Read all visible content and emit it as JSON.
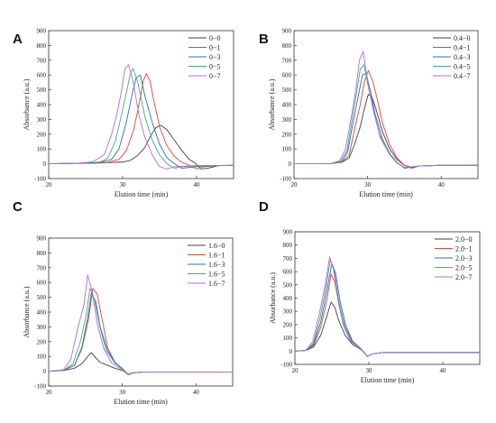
{
  "chart_data": [
    {
      "panel": "A",
      "type": "line",
      "xlabel": "Elution time (min)",
      "ylabel": "Absorbance (a.u.)",
      "xlim": [
        20,
        45
      ],
      "ylim": [
        -100,
        900
      ],
      "xticks": [
        "20",
        "30",
        "40"
      ],
      "yticks": [
        "-100",
        "0",
        "100",
        "200",
        "300",
        "400",
        "500",
        "600",
        "700",
        "800",
        "900"
      ],
      "legend_position": "top-right",
      "series": [
        {
          "name": "0−0",
          "color": "#404040",
          "x": [
            20,
            26,
            28,
            30,
            31,
            32,
            33,
            33.8,
            34.5,
            35.2,
            36,
            37,
            38,
            39,
            39.8,
            40.6,
            41.5,
            43,
            45
          ],
          "y": [
            0,
            3,
            8,
            12,
            22,
            55,
            110,
            190,
            245,
            260,
            230,
            160,
            90,
            30,
            5,
            -35,
            -30,
            -12,
            -10
          ]
        },
        {
          "name": "0−1",
          "color": "#e0453a",
          "x": [
            20,
            26,
            28,
            29.5,
            30.5,
            31.5,
            32.2,
            32.8,
            33.2,
            33.7,
            34.2,
            35,
            36,
            37,
            38,
            39,
            40,
            41,
            43,
            45
          ],
          "y": [
            0,
            5,
            10,
            30,
            90,
            230,
            400,
            560,
            610,
            560,
            430,
            250,
            120,
            50,
            10,
            -10,
            -35,
            -20,
            -12,
            -10
          ]
        },
        {
          "name": "0−3",
          "color": "#2e6db4",
          "x": [
            20,
            25,
            27,
            28.5,
            29.5,
            30.5,
            31.2,
            31.8,
            32.4,
            33,
            34,
            35,
            36,
            37,
            38,
            39,
            41,
            45
          ],
          "y": [
            0,
            5,
            10,
            30,
            100,
            280,
            450,
            580,
            600,
            460,
            280,
            130,
            40,
            0,
            -30,
            -25,
            -15,
            -10
          ]
        },
        {
          "name": "0−5",
          "color": "#3fae7a",
          "x": [
            20,
            25,
            27,
            28,
            29,
            29.8,
            30.5,
            31,
            31.4,
            32,
            33,
            34,
            35,
            36,
            37,
            38,
            41,
            45
          ],
          "y": [
            0,
            5,
            12,
            40,
            150,
            320,
            480,
            600,
            645,
            560,
            320,
            160,
            60,
            0,
            -30,
            -20,
            -12,
            -10
          ]
        },
        {
          "name": "0−7",
          "color": "#b26be0",
          "x": [
            20,
            24,
            26,
            27.5,
            28.5,
            29.2,
            29.8,
            30.3,
            30.8,
            31.4,
            32.2,
            33,
            34,
            35,
            36,
            37,
            40,
            45
          ],
          "y": [
            0,
            5,
            15,
            60,
            200,
            330,
            480,
            640,
            670,
            560,
            330,
            180,
            60,
            -20,
            -35,
            -20,
            -12,
            -10
          ]
        }
      ]
    },
    {
      "panel": "B",
      "type": "line",
      "xlabel": "Elution time (min)",
      "ylabel": "Absorbance (a.u.)",
      "xlim": [
        20,
        45
      ],
      "ylim": [
        -100,
        900
      ],
      "xticks": [
        "20",
        "30",
        "40"
      ],
      "yticks": [
        "-100",
        "0",
        "100",
        "200",
        "300",
        "400",
        "500",
        "600",
        "700",
        "800",
        "900"
      ],
      "legend_position": "top-right",
      "series": [
        {
          "name": "0.4−0",
          "color": "#404040",
          "x": [
            20,
            25,
            26.5,
            27.5,
            28.3,
            29,
            29.6,
            30.1,
            30.6,
            31.2,
            32,
            33,
            34,
            35,
            36,
            37,
            40,
            45
          ],
          "y": [
            0,
            2,
            10,
            40,
            140,
            250,
            380,
            470,
            450,
            360,
            220,
            100,
            30,
            -10,
            -25,
            -15,
            -10,
            -10
          ]
        },
        {
          "name": "0.4−1",
          "color": "#e0453a",
          "x": [
            20,
            25,
            26.5,
            27.5,
            28.3,
            29,
            29.6,
            30.1,
            30.7,
            31.3,
            32,
            33,
            34,
            35,
            36,
            37,
            40,
            45
          ],
          "y": [
            0,
            2,
            10,
            60,
            250,
            400,
            560,
            630,
            560,
            440,
            280,
            130,
            40,
            -10,
            -30,
            -15,
            -10,
            -10
          ]
        },
        {
          "name": "0.4−3",
          "color": "#2e6db4",
          "x": [
            20,
            25,
            26.5,
            27.3,
            28,
            28.7,
            29.3,
            29.8,
            30.4,
            31,
            32,
            33,
            34,
            35,
            37,
            40,
            45
          ],
          "y": [
            0,
            2,
            15,
            80,
            270,
            450,
            600,
            610,
            490,
            340,
            170,
            70,
            10,
            -30,
            -15,
            -10,
            -10
          ]
        },
        {
          "name": "0.4−5",
          "color": "#3fae7a",
          "x": [
            20,
            25,
            26.3,
            27.2,
            27.9,
            28.5,
            29,
            29.5,
            30.1,
            30.8,
            31.7,
            33,
            34,
            35,
            37,
            40,
            45
          ],
          "y": [
            0,
            2,
            15,
            90,
            300,
            480,
            640,
            670,
            520,
            360,
            180,
            60,
            5,
            -25,
            -15,
            -10,
            -10
          ]
        },
        {
          "name": "0.4−7",
          "color": "#b26be0",
          "x": [
            20,
            25,
            26.2,
            27,
            27.8,
            28.4,
            28.9,
            29.4,
            30,
            30.7,
            31.6,
            33,
            34,
            35,
            37,
            40,
            45
          ],
          "y": [
            0,
            2,
            20,
            100,
            320,
            500,
            700,
            760,
            560,
            380,
            200,
            70,
            10,
            -25,
            -15,
            -10,
            -10
          ]
        }
      ]
    },
    {
      "panel": "C",
      "type": "line",
      "xlabel": "Elution time (min)",
      "ylabel": "Absorbance (a.u.)",
      "xlim": [
        20,
        45
      ],
      "ylim": [
        -100,
        900
      ],
      "xticks": [
        "20",
        "30",
        "40"
      ],
      "yticks": [
        "-100",
        "0",
        "100",
        "200",
        "300",
        "400",
        "500",
        "600",
        "700",
        "800",
        "900"
      ],
      "legend_position": "top-right",
      "series": [
        {
          "name": "1.6−0",
          "color": "#404040",
          "x": [
            20,
            22,
            23.5,
            24.5,
            25.3,
            25.8,
            26.4,
            27,
            28,
            29,
            30,
            30.8,
            31.5,
            33,
            36,
            45
          ],
          "y": [
            0,
            5,
            20,
            50,
            100,
            125,
            90,
            60,
            40,
            20,
            5,
            -20,
            -10,
            -5,
            -5,
            -5
          ]
        },
        {
          "name": "1.6−1",
          "color": "#e0453a",
          "x": [
            20,
            22,
            23.5,
            24.5,
            25.4,
            26,
            26.6,
            27.3,
            28,
            29,
            30,
            30.8,
            31.5,
            33,
            36,
            45
          ],
          "y": [
            0,
            5,
            40,
            150,
            350,
            560,
            520,
            340,
            160,
            60,
            20,
            -20,
            -10,
            -5,
            -5,
            -5
          ]
        },
        {
          "name": "1.6−3",
          "color": "#2e6db4",
          "x": [
            20,
            22,
            23.5,
            24.5,
            25.3,
            25.8,
            26.4,
            27,
            28,
            29,
            30,
            30.8,
            31.5,
            33,
            36,
            45
          ],
          "y": [
            0,
            5,
            40,
            160,
            360,
            530,
            470,
            300,
            140,
            60,
            15,
            -25,
            -10,
            -5,
            -5,
            -5
          ]
        },
        {
          "name": "1.6−5",
          "color": "#3fae7a",
          "x": [
            20,
            22,
            23.3,
            24.3,
            25.1,
            25.6,
            26.2,
            26.9,
            27.8,
            29,
            30,
            30.8,
            31.5,
            33,
            36,
            45
          ],
          "y": [
            0,
            5,
            50,
            200,
            380,
            560,
            490,
            310,
            140,
            55,
            15,
            -25,
            -10,
            -5,
            -5,
            -5
          ]
        },
        {
          "name": "1.6−7",
          "color": "#b26be0",
          "x": [
            20,
            22,
            23,
            24,
            24.8,
            25.3,
            25.9,
            26.6,
            27.5,
            28.5,
            29.8,
            30.8,
            31.5,
            33,
            36,
            45
          ],
          "y": [
            0,
            10,
            80,
            300,
            450,
            650,
            540,
            320,
            150,
            60,
            15,
            -25,
            -10,
            -5,
            -5,
            -5
          ]
        }
      ]
    },
    {
      "panel": "D",
      "type": "line",
      "xlabel": "Elution time (min)",
      "ylabel": "Absorbance (a.u.)",
      "xlim": [
        20,
        45
      ],
      "ylim": [
        -100,
        900
      ],
      "xticks": [
        "20",
        "30",
        "40"
      ],
      "yticks": [
        "-100",
        "0",
        "100",
        "200",
        "300",
        "400",
        "500",
        "600",
        "700",
        "800",
        "900"
      ],
      "legend_position": "top-right",
      "series": [
        {
          "name": "2.0−0",
          "color": "#404040",
          "x": [
            20,
            21.5,
            22.5,
            23.5,
            24.3,
            24.9,
            25.4,
            26,
            26.8,
            27.8,
            29,
            29.8,
            30.5,
            32,
            35,
            45
          ],
          "y": [
            0,
            5,
            30,
            120,
            260,
            370,
            330,
            220,
            120,
            50,
            10,
            -40,
            -20,
            -10,
            -10,
            -10
          ]
        },
        {
          "name": "2.0−1",
          "color": "#e0453a",
          "x": [
            20,
            21.5,
            22.5,
            23.5,
            24.3,
            24.9,
            25.4,
            26,
            26.8,
            27.8,
            29,
            29.8,
            30.5,
            32,
            35,
            45
          ],
          "y": [
            0,
            5,
            40,
            180,
            380,
            580,
            520,
            340,
            180,
            70,
            15,
            -40,
            -20,
            -10,
            -10,
            -10
          ]
        },
        {
          "name": "2.0−3",
          "color": "#2e6db4",
          "x": [
            20,
            21.5,
            22.5,
            23.5,
            24.3,
            25,
            25.5,
            26.1,
            26.9,
            27.8,
            29,
            29.8,
            30.5,
            32,
            35,
            45
          ],
          "y": [
            0,
            5,
            50,
            220,
            450,
            660,
            590,
            380,
            190,
            75,
            15,
            -40,
            -20,
            -10,
            -10,
            -10
          ]
        },
        {
          "name": "2.0−5",
          "color": "#3fae7a",
          "x": [
            20,
            21.5,
            22.5,
            23.4,
            24.2,
            24.8,
            25.3,
            25.9,
            26.7,
            27.7,
            29,
            29.8,
            30.5,
            32,
            35,
            45
          ],
          "y": [
            0,
            5,
            60,
            250,
            480,
            690,
            610,
            390,
            190,
            70,
            15,
            -40,
            -20,
            -10,
            -10,
            -10
          ]
        },
        {
          "name": "2.0−7",
          "color": "#b26be0",
          "x": [
            20,
            21.5,
            22.4,
            23.3,
            24.1,
            24.7,
            25.2,
            25.8,
            26.6,
            27.6,
            29,
            29.8,
            30.5,
            32,
            35,
            45
          ],
          "y": [
            0,
            8,
            70,
            280,
            500,
            710,
            620,
            390,
            185,
            70,
            15,
            -40,
            -20,
            -10,
            -10,
            -10
          ]
        }
      ]
    }
  ]
}
